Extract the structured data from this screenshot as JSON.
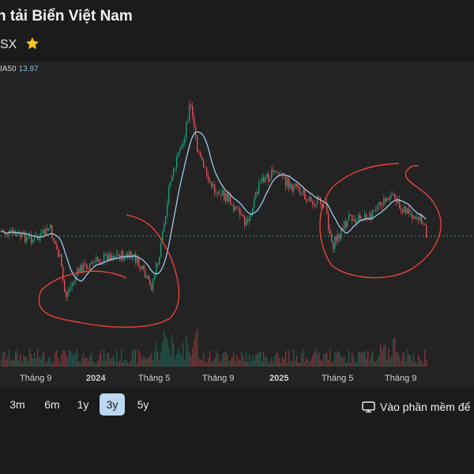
{
  "header": {
    "title": "n tải Biển Việt Nam",
    "exchange": "SX",
    "star_icon": "star-icon",
    "star_color": "#f5c518"
  },
  "indicator": {
    "label": "IA50",
    "value": "13.97"
  },
  "chart": {
    "x_labels": [
      "Tháng 9",
      "2024",
      "Tháng 5",
      "Tháng 9",
      "2025",
      "Tháng 5",
      "Tháng 9"
    ],
    "up_color": "#1f9a7a",
    "down_color": "#e0505a",
    "ma_color": "#9cc8e8",
    "annotation_color": "#e8443a",
    "reference_line_color": "#3fa88c"
  },
  "ranges": {
    "items": [
      "3m",
      "6m",
      "1y",
      "3y",
      "5y"
    ],
    "selected": "3y"
  },
  "open_app": {
    "label": "Vào phần mềm để",
    "icon": "monitor-icon"
  }
}
